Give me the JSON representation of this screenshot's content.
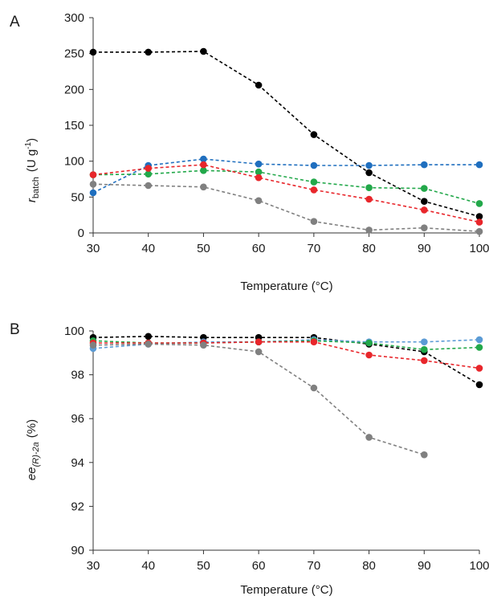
{
  "chart_data": [
    {
      "type": "line",
      "panel_label": "A",
      "x": [
        30,
        40,
        50,
        60,
        70,
        80,
        90,
        100
      ],
      "xlabel": "Temperature (°C)",
      "ylabel_main": "r",
      "ylabel_sub": "batch",
      "ylabel_units": "(U g",
      "ylabel_sup": "-1",
      "ylabel_close": ")",
      "xlim": [
        30,
        100
      ],
      "ylim": [
        0,
        300
      ],
      "xticks": [
        "30",
        "40",
        "50",
        "60",
        "70",
        "80",
        "90",
        "100"
      ],
      "yticks": [
        "0",
        "50",
        "100",
        "150",
        "200",
        "250",
        "300"
      ],
      "grid": false,
      "series": [
        {
          "color": "#000000",
          "values": [
            252,
            252,
            253,
            206,
            137,
            84,
            44,
            23
          ]
        },
        {
          "color": "#1f6fbf",
          "values": [
            56,
            94,
            103,
            96,
            94,
            94,
            95,
            95
          ]
        },
        {
          "color": "#22a84a",
          "values": [
            81,
            82,
            87,
            85,
            71,
            63,
            62,
            41
          ]
        },
        {
          "color": "#e8262b",
          "values": [
            81,
            90,
            95,
            77,
            60,
            47,
            32,
            15
          ]
        },
        {
          "color": "#808080",
          "values": [
            68,
            66,
            64,
            45,
            16,
            4,
            7,
            2
          ]
        }
      ]
    },
    {
      "type": "line",
      "panel_label": "B",
      "x": [
        30,
        40,
        50,
        60,
        70,
        80,
        90,
        100
      ],
      "xlabel": "Temperature (°C)",
      "ylabel_main": "ee",
      "ylabel_sub": "(R)-2a",
      "ylabel_units": "(%)",
      "xlim": [
        30,
        100
      ],
      "ylim": [
        90,
        100
      ],
      "xticks": [
        "30",
        "40",
        "50",
        "60",
        "70",
        "80",
        "90",
        "100"
      ],
      "yticks": [
        "90",
        "92",
        "94",
        "96",
        "98",
        "100"
      ],
      "grid": false,
      "series": [
        {
          "color": "#000000",
          "values": [
            99.7,
            99.75,
            99.7,
            99.7,
            99.7,
            99.4,
            99.05,
            97.55
          ]
        },
        {
          "color": "#5b9bd5",
          "values": [
            99.2,
            99.4,
            99.5,
            99.5,
            99.6,
            99.5,
            99.5,
            99.6
          ]
        },
        {
          "color": "#22a84a",
          "values": [
            99.55,
            99.45,
            99.45,
            99.5,
            99.55,
            99.45,
            99.15,
            99.25
          ]
        },
        {
          "color": "#e8262b",
          "values": [
            99.45,
            99.45,
            99.45,
            99.5,
            99.5,
            98.9,
            98.65,
            98.3
          ]
        },
        {
          "color": "#808080",
          "values": [
            99.35,
            99.4,
            99.35,
            99.05,
            97.4,
            95.15,
            94.35,
            null
          ]
        }
      ]
    }
  ]
}
